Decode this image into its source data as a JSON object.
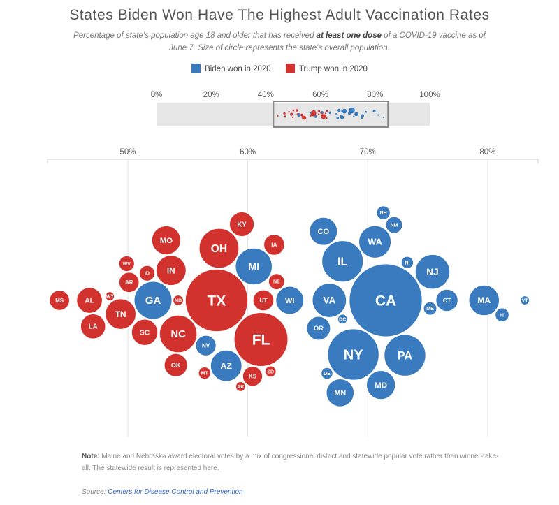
{
  "header": {
    "title": "States Biden Won Have The Highest Adult Vaccination Rates",
    "subtitle_pre": "Percentage of state’s population age 18 and older that has received ",
    "subtitle_bold": "at least one dose",
    "subtitle_post": " of a COVID-19 vaccine as of June 7. Size of circle represents the state’s overall population."
  },
  "legend": {
    "biden_label": "Biden won in 2020",
    "trump_label": "Trump won in 2020"
  },
  "footer": {
    "note_label": "Note:",
    "note_text": " Maine and Nebraska award electoral votes by a mix of congressional district and statewide popular vote rather than winner-take-all. The statewide result is represented here.",
    "source_label": "Source: ",
    "source_link": "Centers for Disease Control and Prevention"
  },
  "colors": {
    "biden": "#3a7bbf",
    "trump": "#d2322d"
  },
  "chart_data": {
    "type": "scatter",
    "title": "States Biden Won Have The Highest Adult Vaccination Rates",
    "overview_axis": {
      "xlim": [
        0,
        100
      ],
      "ticks": [
        "0%",
        "20%",
        "40%",
        "60%",
        "80%",
        "100%"
      ],
      "tick_values": [
        0,
        20,
        40,
        60,
        80,
        100
      ]
    },
    "main_axis": {
      "xlim": [
        43.3,
        84.2
      ],
      "ticks": [
        "50%",
        "60%",
        "70%",
        "80%"
      ],
      "tick_values": [
        50,
        60,
        70,
        80
      ],
      "grid": true
    },
    "size_encoding": "state population",
    "series": [
      {
        "name": "Biden won in 2020",
        "color": "#3a7bbf",
        "points": [
          {
            "state": "MD",
            "x": 71.1,
            "pop": 6.2
          },
          {
            "state": "MN",
            "x": 67.7,
            "pop": 5.7
          },
          {
            "state": "WA",
            "x": 70.6,
            "pop": 7.7
          },
          {
            "state": "RI",
            "x": 73.3,
            "pop": 1.1
          },
          {
            "state": "OR",
            "x": 65.9,
            "pop": 4.2
          },
          {
            "state": "NY",
            "x": 68.8,
            "pop": 19.5
          },
          {
            "state": "PA",
            "x": 73.1,
            "pop": 12.8
          },
          {
            "state": "NH",
            "x": 71.3,
            "pop": 1.4
          },
          {
            "state": "NJ",
            "x": 75.4,
            "pop": 8.9
          },
          {
            "state": "HI",
            "x": 81.2,
            "pop": 1.4
          },
          {
            "state": "VT",
            "x": 83.1,
            "pop": 0.6
          },
          {
            "state": "MA",
            "x": 79.7,
            "pop": 6.9
          },
          {
            "state": "DE",
            "x": 66.6,
            "pop": 1.0
          },
          {
            "state": "DC",
            "x": 67.9,
            "pop": 0.7
          },
          {
            "state": "CO",
            "x": 66.3,
            "pop": 5.8
          },
          {
            "state": "CA",
            "x": 71.5,
            "pop": 39.5
          },
          {
            "state": "CT",
            "x": 76.6,
            "pop": 3.6
          },
          {
            "state": "ME",
            "x": 75.2,
            "pop": 1.3
          },
          {
            "state": "VA",
            "x": 66.8,
            "pop": 8.6
          },
          {
            "state": "NM",
            "x": 72.2,
            "pop": 2.1
          },
          {
            "state": "IL",
            "x": 67.9,
            "pop": 12.7
          },
          {
            "state": "MI",
            "x": 60.5,
            "pop": 10.0
          },
          {
            "state": "AZ",
            "x": 58.2,
            "pop": 7.3
          },
          {
            "state": "NV",
            "x": 56.5,
            "pop": 3.1
          },
          {
            "state": "GA",
            "x": 52.1,
            "pop": 10.6
          },
          {
            "state": "WI",
            "x": 63.5,
            "pop": 5.8
          }
        ]
      },
      {
        "name": "Trump won in 2020",
        "color": "#d2322d",
        "points": [
          {
            "state": "OH",
            "x": 57.6,
            "pop": 11.7
          },
          {
            "state": "FL",
            "x": 61.1,
            "pop": 21.5
          },
          {
            "state": "AK",
            "x": 59.4,
            "pop": 0.7
          },
          {
            "state": "OK",
            "x": 54.0,
            "pop": 4.0
          },
          {
            "state": "ND",
            "x": 54.2,
            "pop": 0.8
          },
          {
            "state": "KS",
            "x": 60.4,
            "pop": 2.9
          },
          {
            "state": "SD",
            "x": 61.9,
            "pop": 0.9
          },
          {
            "state": "KY",
            "x": 59.5,
            "pop": 4.5
          },
          {
            "state": "UT",
            "x": 61.3,
            "pop": 3.2
          },
          {
            "state": "MT",
            "x": 56.4,
            "pop": 1.1
          },
          {
            "state": "NC",
            "x": 54.2,
            "pop": 10.4
          },
          {
            "state": "AL",
            "x": 46.8,
            "pop": 4.9
          },
          {
            "state": "WY",
            "x": 48.5,
            "pop": 0.6
          },
          {
            "state": "MS",
            "x": 44.3,
            "pop": 3.0
          },
          {
            "state": "LA",
            "x": 47.1,
            "pop": 4.6
          },
          {
            "state": "AR",
            "x": 50.1,
            "pop": 3.0
          },
          {
            "state": "ID",
            "x": 51.6,
            "pop": 1.8
          },
          {
            "state": "WV",
            "x": 49.9,
            "pop": 1.8
          },
          {
            "state": "SC",
            "x": 51.4,
            "pop": 5.1
          },
          {
            "state": "TN",
            "x": 49.4,
            "pop": 6.9
          },
          {
            "state": "IN",
            "x": 53.6,
            "pop": 6.7
          },
          {
            "state": "TX",
            "x": 57.4,
            "pop": 29.0
          },
          {
            "state": "IA",
            "x": 62.2,
            "pop": 3.2
          },
          {
            "state": "NE",
            "x": 62.4,
            "pop": 1.9
          },
          {
            "state": "MO",
            "x": 53.2,
            "pop": 6.2
          }
        ]
      }
    ]
  }
}
